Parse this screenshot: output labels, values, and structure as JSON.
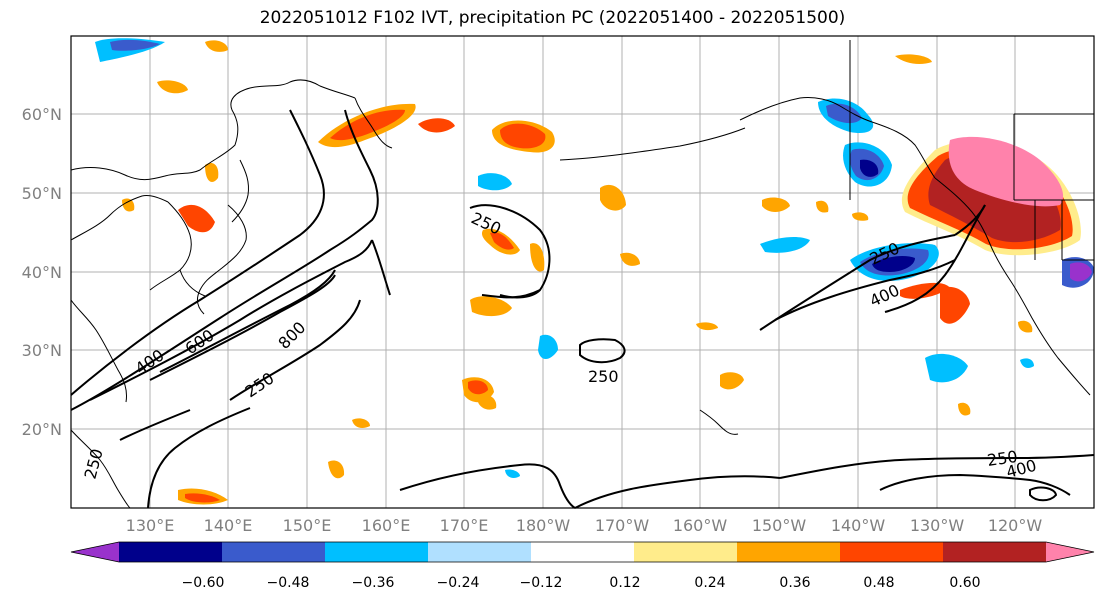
{
  "title": "2022051012 F102 IVT, precipitation PC (2022051400 - 2022051500)",
  "map": {
    "projection": "plate-carree",
    "lon_range": [
      120,
      250
    ],
    "lat_range": [
      10,
      70
    ],
    "gridlines": true,
    "lon_ticks": [
      "130°E",
      "140°E",
      "150°E",
      "160°E",
      "170°E",
      "180°W",
      "170°W",
      "160°W",
      "150°W",
      "140°W",
      "130°W",
      "120°W"
    ],
    "lat_ticks": [
      "20°N",
      "30°N",
      "40°N",
      "50°N",
      "60°N"
    ],
    "ivt_contour_labels": [
      "250",
      "400",
      "600",
      "800",
      "250",
      "250",
      "250",
      "400",
      "250",
      "400",
      "250"
    ]
  },
  "colorbar": {
    "ticks": [
      "−0.60",
      "−0.48",
      "−0.36",
      "−0.24",
      "−0.12",
      "0.12",
      "0.24",
      "0.36",
      "0.48",
      "0.60"
    ],
    "colors": [
      "#9932cc",
      "#00008b",
      "#3a5bcc",
      "#00bfff",
      "#b0e0ff",
      "#ffffff",
      "#ffec8b",
      "#ffa500",
      "#ff4500",
      "#b22222",
      "#ff82ab"
    ],
    "extend": "both"
  }
}
